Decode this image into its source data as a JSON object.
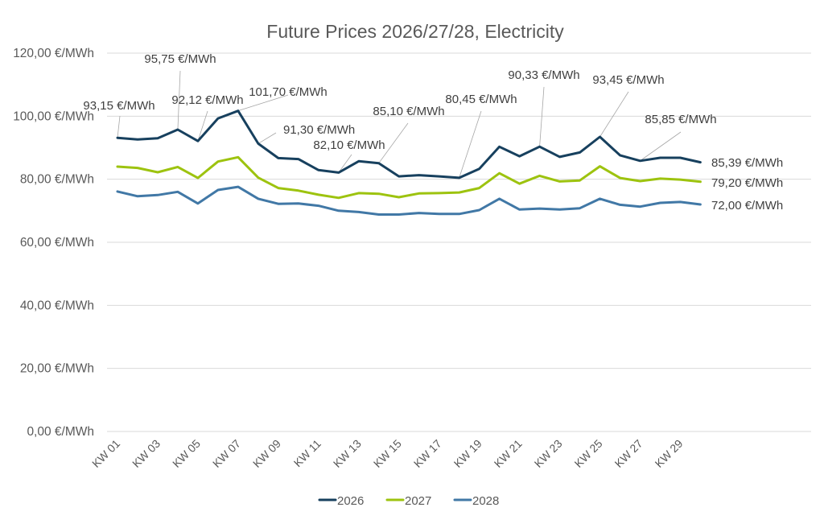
{
  "chart_data": {
    "type": "line",
    "title": "Future Prices 2026/27/28, Electricity",
    "xlabel": "",
    "ylabel": "",
    "ylim": [
      0,
      120
    ],
    "yticks": [
      0,
      20,
      40,
      60,
      80,
      100,
      120
    ],
    "ytick_labels": [
      "0,00 €/MWh",
      "20,00 €/MWh",
      "40,00 €/MWh",
      "60,00 €/MWh",
      "80,00 €/MWh",
      "100,00 €/MWh",
      "120,00 €/MWh"
    ],
    "grid": true,
    "legend_position": "bottom",
    "categories": [
      "KW 01",
      "KW 02",
      "KW 03",
      "KW 04",
      "KW 05",
      "KW 06",
      "KW 07",
      "KW 08",
      "KW 09",
      "KW 10",
      "KW 11",
      "KW 12",
      "KW 13",
      "KW 14",
      "KW 15",
      "KW 16",
      "KW 17",
      "KW 18",
      "KW 19",
      "KW 20",
      "KW 21",
      "KW 22",
      "KW 23",
      "KW 24",
      "KW 25",
      "KW 26",
      "KW 27",
      "KW 28",
      "KW 29",
      "KW 30"
    ],
    "xtick_labels": [
      "KW 01",
      "KW 03",
      "KW 05",
      "KW 07",
      "KW 09",
      "KW 11",
      "KW 13",
      "KW 15",
      "KW 17",
      "KW 19",
      "KW 21",
      "KW 23",
      "KW 25",
      "KW 27",
      "KW 29"
    ],
    "series": [
      {
        "name": "2026",
        "color": "#17405e",
        "values": [
          93.15,
          92.6,
          93.0,
          95.75,
          92.12,
          99.3,
          101.7,
          91.3,
          86.7,
          86.4,
          82.9,
          82.1,
          85.7,
          85.1,
          80.9,
          81.3,
          80.9,
          80.45,
          83.3,
          90.3,
          87.3,
          90.33,
          87.1,
          88.5,
          93.45,
          87.6,
          85.85,
          86.8,
          86.8,
          85.39
        ]
      },
      {
        "name": "2027",
        "color": "#9dc30f",
        "values": [
          84.0,
          83.6,
          82.2,
          83.9,
          80.4,
          85.6,
          87.0,
          80.5,
          77.2,
          76.4,
          75.1,
          74.1,
          75.6,
          75.4,
          74.3,
          75.5,
          75.6,
          75.8,
          77.2,
          81.9,
          78.6,
          81.1,
          79.3,
          79.6,
          84.1,
          80.4,
          79.4,
          80.2,
          79.9,
          79.2
        ]
      },
      {
        "name": "2028",
        "color": "#4178a6",
        "values": [
          76.1,
          74.6,
          75.0,
          76.0,
          72.3,
          76.6,
          77.6,
          73.8,
          72.2,
          72.3,
          71.6,
          70.0,
          69.6,
          68.8,
          68.8,
          69.3,
          69.0,
          69.0,
          70.2,
          73.8,
          70.4,
          70.7,
          70.4,
          70.8,
          73.8,
          71.9,
          71.3,
          72.5,
          72.8,
          72.0
        ]
      }
    ],
    "annotations": [
      {
        "series": "2026",
        "index": 0,
        "text": "93,15 €/MWh"
      },
      {
        "series": "2026",
        "index": 3,
        "text": "95,75 €/MWh"
      },
      {
        "series": "2026",
        "index": 4,
        "text": "92,12 €/MWh"
      },
      {
        "series": "2026",
        "index": 6,
        "text": "101,70 €/MWh"
      },
      {
        "series": "2026",
        "index": 7,
        "text": "91,30 €/MWh"
      },
      {
        "series": "2026",
        "index": 11,
        "text": "82,10 €/MWh"
      },
      {
        "series": "2026",
        "index": 13,
        "text": "85,10 €/MWh"
      },
      {
        "series": "2026",
        "index": 17,
        "text": "80,45 €/MWh"
      },
      {
        "series": "2026",
        "index": 21,
        "text": "90,33 €/MWh"
      },
      {
        "series": "2026",
        "index": 24,
        "text": "93,45 €/MWh"
      },
      {
        "series": "2026",
        "index": 26,
        "text": "85,85 €/MWh"
      },
      {
        "series": "2026",
        "index": 29,
        "text": "85,39 €/MWh"
      },
      {
        "series": "2027",
        "index": 29,
        "text": "79,20 €/MWh"
      },
      {
        "series": "2028",
        "index": 29,
        "text": "72,00 €/MWh"
      }
    ]
  }
}
